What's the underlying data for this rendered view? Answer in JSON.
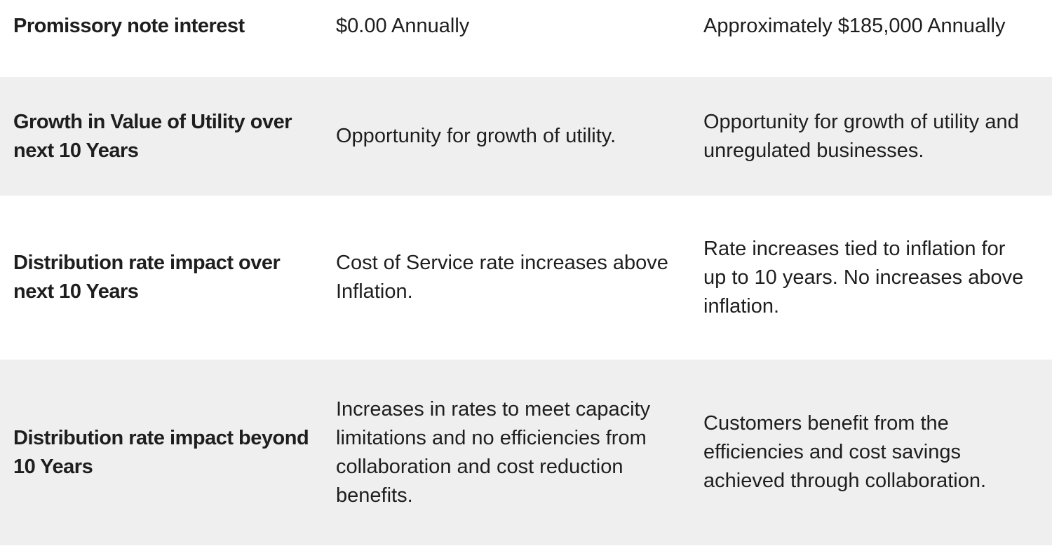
{
  "table": {
    "stripe_color": "#f0efef",
    "text_color": "#1e1e1e",
    "rows": [
      {
        "label": "Promissory note interest",
        "option_a": "$0.00 Annually",
        "option_b": "Approximately $185,000 Annually"
      },
      {
        "label": [
          "Growth in Value of Utility over",
          "next 10 Years"
        ],
        "option_a": "Opportunity for growth of utility.",
        "option_b": [
          "Opportunity for growth of utility and",
          "unregulated businesses."
        ]
      },
      {
        "label": [
          "Distribution rate impact over",
          "next 10 Years"
        ],
        "option_a": [
          "Cost of Service rate increases above",
          "Inflation."
        ],
        "option_b": [
          "Rate increases tied to inflation for",
          "up to 10 years. No increases above",
          "inflation."
        ]
      },
      {
        "label": [
          "Distribution rate impact beyond",
          "10 Years"
        ],
        "option_a": [
          "Increases in rates to meet capacity",
          "limitations and no efficiencies from",
          "collaboration and cost reduction",
          "benefits."
        ],
        "option_b": [
          "Customers benefit from the",
          "efficiencies and cost savings",
          "achieved through collaboration."
        ]
      }
    ]
  }
}
